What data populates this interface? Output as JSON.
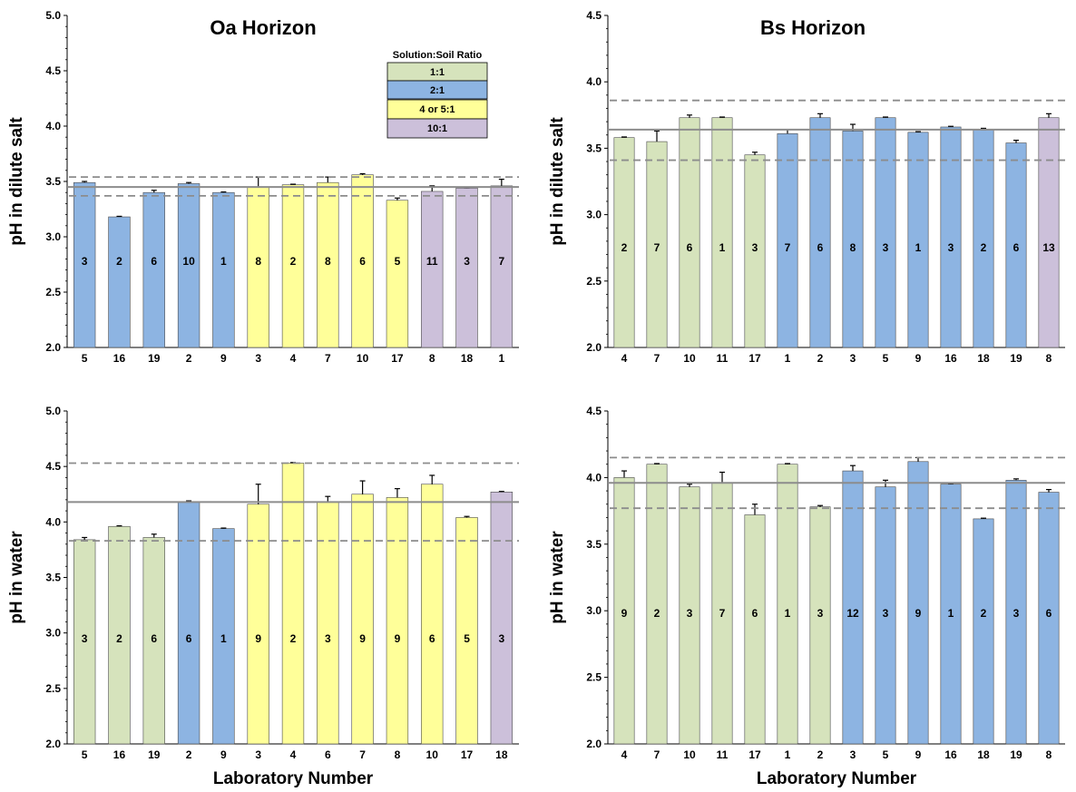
{
  "colors": {
    "1:1": "#d6e3bc",
    "2:1": "#8db4e2",
    "4 or 5:1": "#ffff99",
    "10:1": "#ccc0da",
    "mean_line": "#8c8c8c",
    "range_line": "#8c8c8c"
  },
  "legend": {
    "title": "Solution:Soil Ratio",
    "items": [
      {
        "label": "1:1",
        "key": "1:1"
      },
      {
        "label": "2:1",
        "key": "2:1"
      },
      {
        "label": "4 or 5:1",
        "key": "4 or 5:1"
      },
      {
        "label": "10:1",
        "key": "10:1"
      }
    ]
  },
  "chart_data": [
    {
      "type": "bar",
      "title": "Oa Horizon",
      "ylabel": "pH in dilute salt",
      "xlabel": "",
      "ylim": [
        2.0,
        5.0
      ],
      "yticks": [
        "2.0",
        "2.5",
        "3.0",
        "3.5",
        "4.0",
        "4.5",
        "5.0"
      ],
      "categories": [
        "5",
        "16",
        "19",
        "2",
        "9",
        "3",
        "4",
        "7",
        "10",
        "17",
        "8",
        "18",
        "1"
      ],
      "values": [
        3.49,
        3.18,
        3.4,
        3.48,
        3.4,
        3.45,
        3.47,
        3.49,
        3.56,
        3.33,
        3.41,
        3.44,
        3.46
      ],
      "errors": [
        0.01,
        0.005,
        0.02,
        0.01,
        0.005,
        0.09,
        0.005,
        0.05,
        0.01,
        0.02,
        0.05,
        0.005,
        0.06
      ],
      "ratios": [
        "2:1",
        "2:1",
        "2:1",
        "2:1",
        "2:1",
        "4 or 5:1",
        "4 or 5:1",
        "4 or 5:1",
        "4 or 5:1",
        "4 or 5:1",
        "10:1",
        "10:1",
        "10:1"
      ],
      "bar_labels": [
        "3",
        "2",
        "6",
        "10",
        "1",
        "8",
        "2",
        "8",
        "6",
        "5",
        "11",
        "3",
        "7"
      ],
      "mean": 3.45,
      "range": [
        3.37,
        3.54
      ],
      "label_y": 2.78
    },
    {
      "type": "bar",
      "title": "Bs Horizon",
      "ylabel": "pH in dilute salt",
      "xlabel": "",
      "ylim": [
        2.0,
        4.5
      ],
      "yticks": [
        "2.0",
        "2.5",
        "3.0",
        "3.5",
        "4.0",
        "4.5"
      ],
      "categories": [
        "4",
        "7",
        "10",
        "11",
        "17",
        "1",
        "2",
        "3",
        "5",
        "9",
        "16",
        "18",
        "19",
        "8"
      ],
      "values": [
        3.58,
        3.55,
        3.73,
        3.73,
        3.45,
        3.61,
        3.73,
        3.63,
        3.73,
        3.62,
        3.66,
        3.64,
        3.54,
        3.73
      ],
      "errors": [
        0.005,
        0.08,
        0.02,
        0.005,
        0.02,
        0.03,
        0.03,
        0.05,
        0.005,
        0.005,
        0.005,
        0.01,
        0.02,
        0.03
      ],
      "ratios": [
        "1:1",
        "1:1",
        "1:1",
        "1:1",
        "1:1",
        "2:1",
        "2:1",
        "2:1",
        "2:1",
        "2:1",
        "2:1",
        "2:1",
        "2:1",
        "10:1"
      ],
      "bar_labels": [
        "2",
        "7",
        "6",
        "1",
        "3",
        "7",
        "6",
        "8",
        "3",
        "1",
        "3",
        "2",
        "6",
        "13"
      ],
      "mean": 3.64,
      "range": [
        3.41,
        3.86
      ],
      "label_y": 2.75
    },
    {
      "type": "bar",
      "title": "",
      "ylabel": "pH in water",
      "xlabel": "Laboratory Number",
      "ylim": [
        2.0,
        5.0
      ],
      "yticks": [
        "2.0",
        "2.5",
        "3.0",
        "3.5",
        "4.0",
        "4.5",
        "5.0"
      ],
      "categories": [
        "5",
        "16",
        "19",
        "2",
        "9",
        "3",
        "4",
        "6",
        "7",
        "8",
        "10",
        "17",
        "18"
      ],
      "values": [
        3.84,
        3.96,
        3.86,
        4.18,
        3.94,
        4.16,
        4.53,
        4.18,
        4.25,
        4.22,
        4.34,
        4.04,
        4.27
      ],
      "errors": [
        0.02,
        0.005,
        0.03,
        0.01,
        0.005,
        0.18,
        0.005,
        0.05,
        0.12,
        0.08,
        0.08,
        0.01,
        0.005
      ],
      "ratios": [
        "1:1",
        "1:1",
        "1:1",
        "2:1",
        "2:1",
        "4 or 5:1",
        "4 or 5:1",
        "4 or 5:1",
        "4 or 5:1",
        "4 or 5:1",
        "4 or 5:1",
        "4 or 5:1",
        "10:1"
      ],
      "bar_labels": [
        "3",
        "2",
        "6",
        "6",
        "1",
        "9",
        "2",
        "3",
        "9",
        "9",
        "6",
        "5",
        "3"
      ],
      "mean": 4.18,
      "range": [
        3.83,
        4.53
      ],
      "label_y": 2.95
    },
    {
      "type": "bar",
      "title": "",
      "ylabel": "pH in water",
      "xlabel": "Laboratory Number",
      "ylim": [
        2.0,
        4.5
      ],
      "yticks": [
        "2.0",
        "2.5",
        "3.0",
        "3.5",
        "4.0",
        "4.5"
      ],
      "categories": [
        "4",
        "7",
        "10",
        "11",
        "17",
        "1",
        "2",
        "3",
        "5",
        "9",
        "16",
        "18",
        "19",
        "8"
      ],
      "values": [
        4.0,
        4.1,
        3.93,
        3.96,
        3.72,
        4.1,
        3.78,
        4.05,
        3.93,
        4.12,
        3.95,
        3.69,
        3.98,
        3.89
      ],
      "errors": [
        0.05,
        0.005,
        0.02,
        0.08,
        0.08,
        0.005,
        0.01,
        0.04,
        0.05,
        0.03,
        0.005,
        0.005,
        0.01,
        0.02
      ],
      "ratios": [
        "1:1",
        "1:1",
        "1:1",
        "1:1",
        "1:1",
        "1:1",
        "1:1",
        "2:1",
        "2:1",
        "2:1",
        "2:1",
        "2:1",
        "2:1",
        "2:1"
      ],
      "bar_labels": [
        "9",
        "2",
        "3",
        "7",
        "6",
        "1",
        "3",
        "12",
        "3",
        "9",
        "1",
        "2",
        "3",
        "6"
      ],
      "mean": 3.96,
      "range": [
        3.77,
        4.15
      ],
      "label_y": 2.98
    }
  ]
}
